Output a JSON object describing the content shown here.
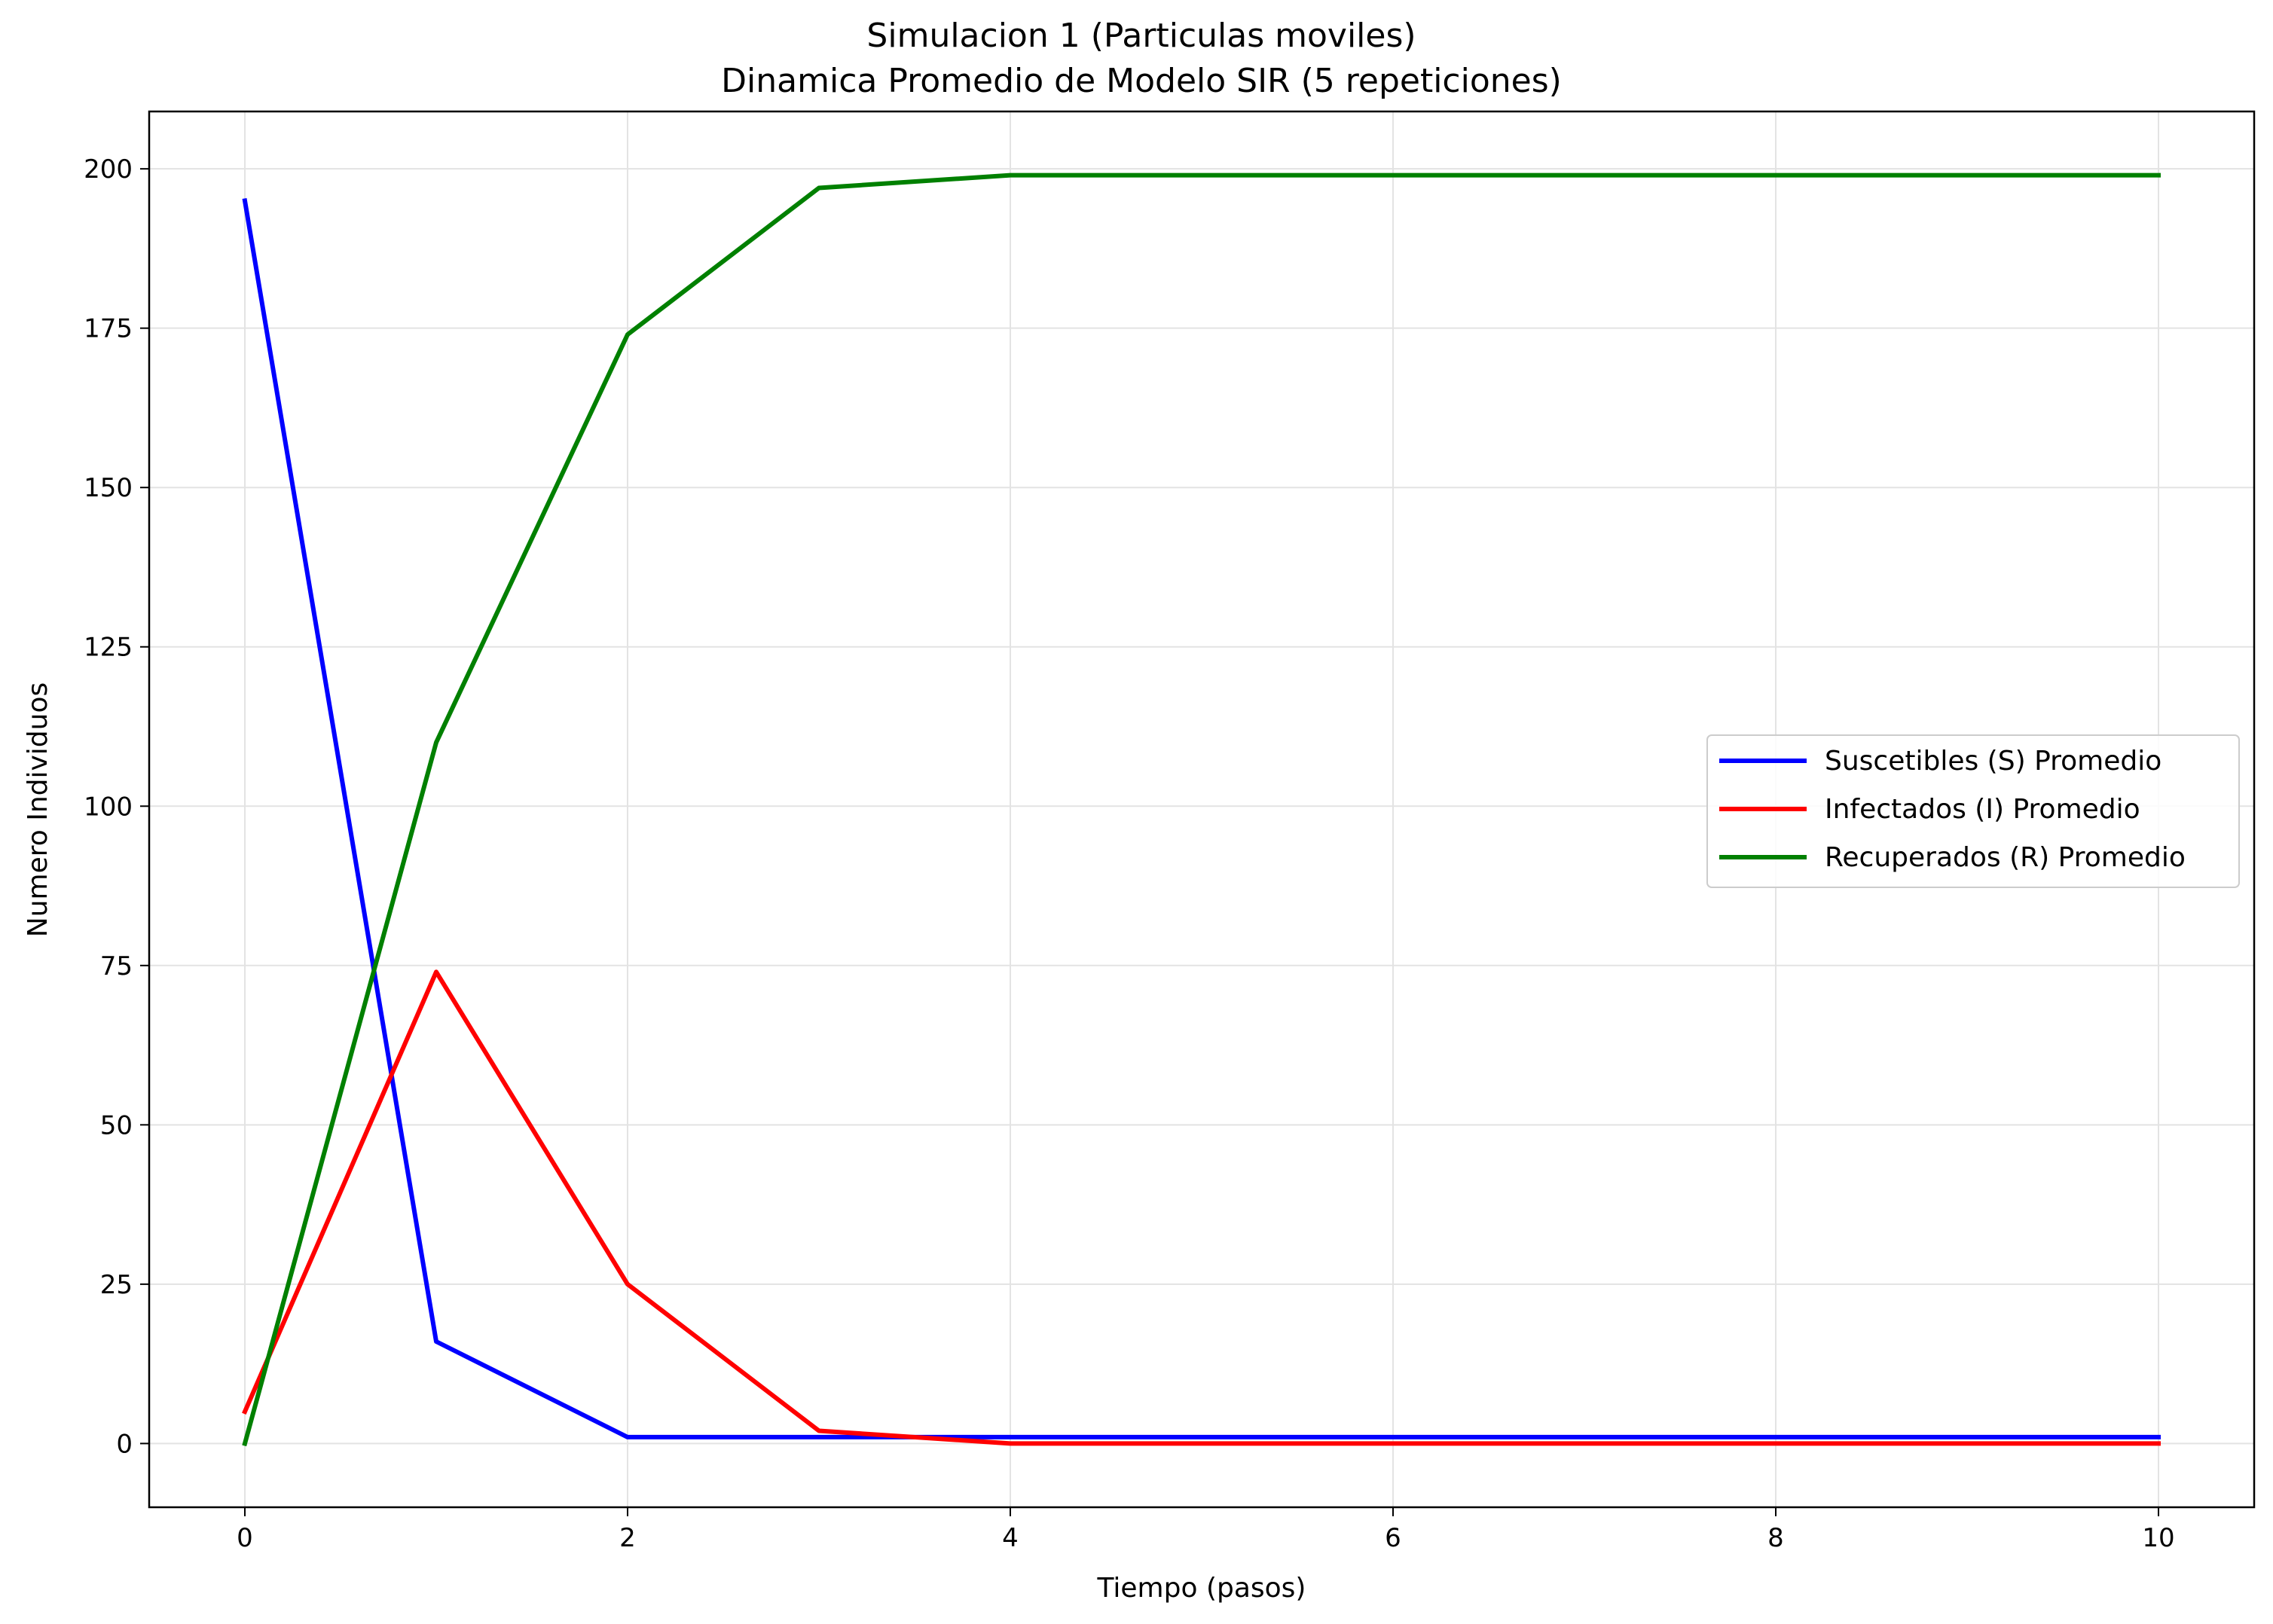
{
  "chart_data": {
    "type": "line",
    "title_line1": "Simulacion 1 (Particulas moviles)",
    "title_line2": "Dinamica Promedio de Modelo SIR (5 repeticiones)",
    "xlabel": "Tiempo (pasos)",
    "ylabel": "Numero Individuos",
    "xlim": [
      -0.5,
      10.5
    ],
    "ylim": [
      -10,
      209
    ],
    "xticks": [
      0,
      2,
      4,
      6,
      8,
      10
    ],
    "yticks": [
      0,
      25,
      50,
      75,
      100,
      125,
      150,
      175,
      200
    ],
    "grid": true,
    "legend_position": "center-right",
    "x": [
      0,
      1,
      2,
      3,
      4,
      5,
      6,
      7,
      8,
      9,
      10
    ],
    "series": [
      {
        "name": "Suscetibles (S) Promedio",
        "color": "#0000ff",
        "values": [
          195,
          16,
          1,
          1,
          1,
          1,
          1,
          1,
          1,
          1,
          1
        ]
      },
      {
        "name": "Infectados (I) Promedio",
        "color": "#ff0000",
        "values": [
          5,
          74,
          25,
          2,
          0,
          0,
          0,
          0,
          0,
          0,
          0
        ]
      },
      {
        "name": "Recuperados (R) Promedio",
        "color": "#008000",
        "values": [
          0,
          110,
          174,
          197,
          199,
          199,
          199,
          199,
          199,
          199,
          199
        ]
      }
    ]
  }
}
